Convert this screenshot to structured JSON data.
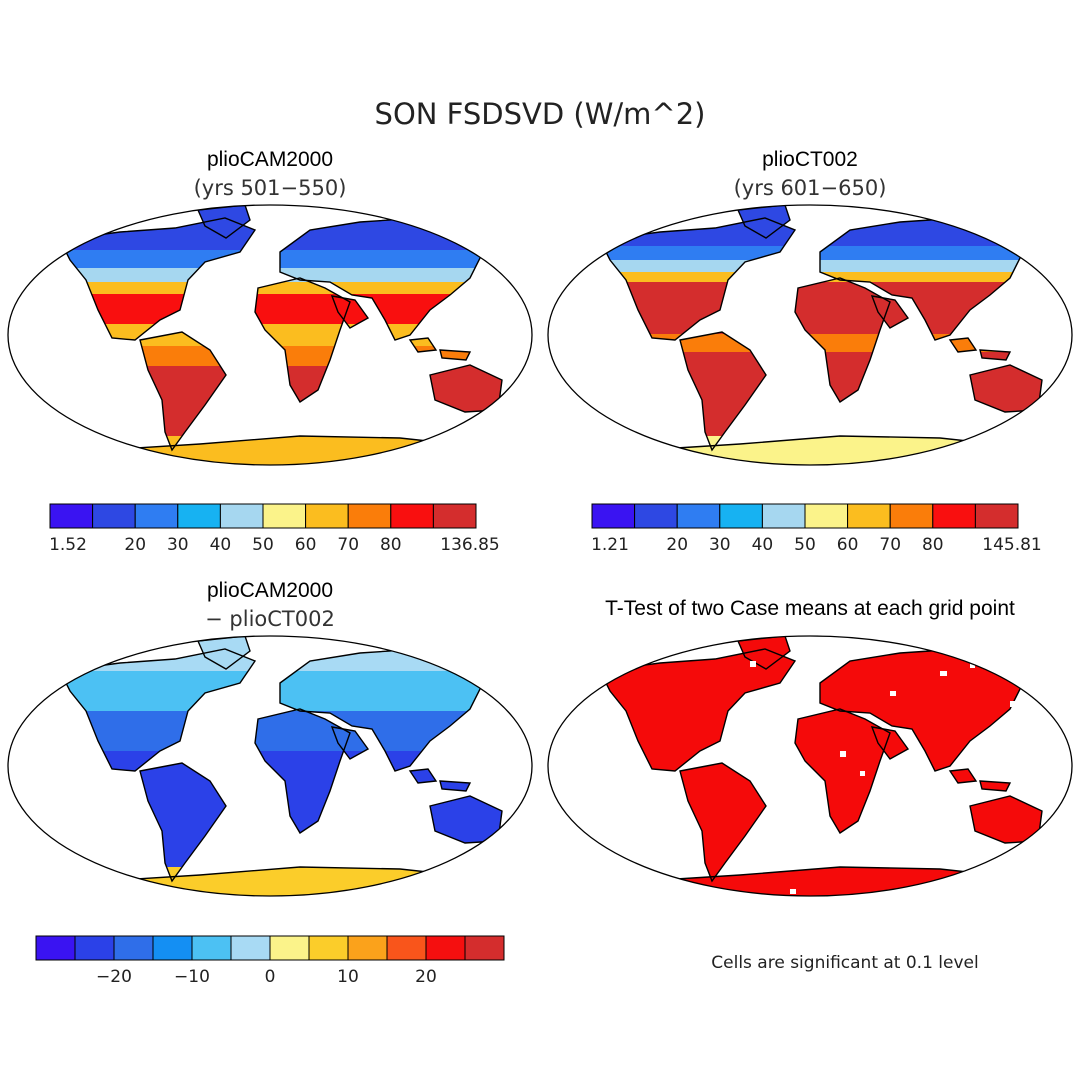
{
  "title": "SON FSDSVD (W/m^2)",
  "colors": {
    "seq": [
      "#3a13f2",
      "#2e48e3",
      "#2f7df2",
      "#17b2f2",
      "#a6d7f0",
      "#fbf38a",
      "#fbbd1f",
      "#fa7d0a",
      "#f90f0f",
      "#d42d2d"
    ],
    "div": [
      "#3a13f2",
      "#2b41e8",
      "#2f6ee9",
      "#148ff3",
      "#4cc1f3",
      "#a8daf4",
      "#fbf38a",
      "#fbcd2a",
      "#fba21b",
      "#f9551b",
      "#f50f0f",
      "#d42d2d"
    ],
    "significant": "#f50a0a",
    "outline": "#000000"
  },
  "panels": [
    {
      "id": "p1",
      "title": "plioCAM2000",
      "subtitle": "(yrs 501−550)",
      "colorbar": {
        "scheme": "seq",
        "labels": [
          "1.52",
          "20",
          "30",
          "40",
          "50",
          "60",
          "70",
          "80",
          "136.85"
        ]
      }
    },
    {
      "id": "p2",
      "title": "plioCT002",
      "subtitle": "(yrs 601−650)",
      "colorbar": {
        "scheme": "seq",
        "labels": [
          "1.21",
          "20",
          "30",
          "40",
          "50",
          "60",
          "70",
          "80",
          "145.81"
        ]
      }
    },
    {
      "id": "p3",
      "title": "plioCAM2000",
      "subtitle": "− plioCT002",
      "colorbar": {
        "scheme": "div",
        "labels": [
          "−20",
          "−10",
          "0",
          "10",
          "20"
        ]
      }
    },
    {
      "id": "p4",
      "title": "T-Test of two Case means at each grid point",
      "note": "Cells are significant at 0.1 level"
    }
  ]
}
